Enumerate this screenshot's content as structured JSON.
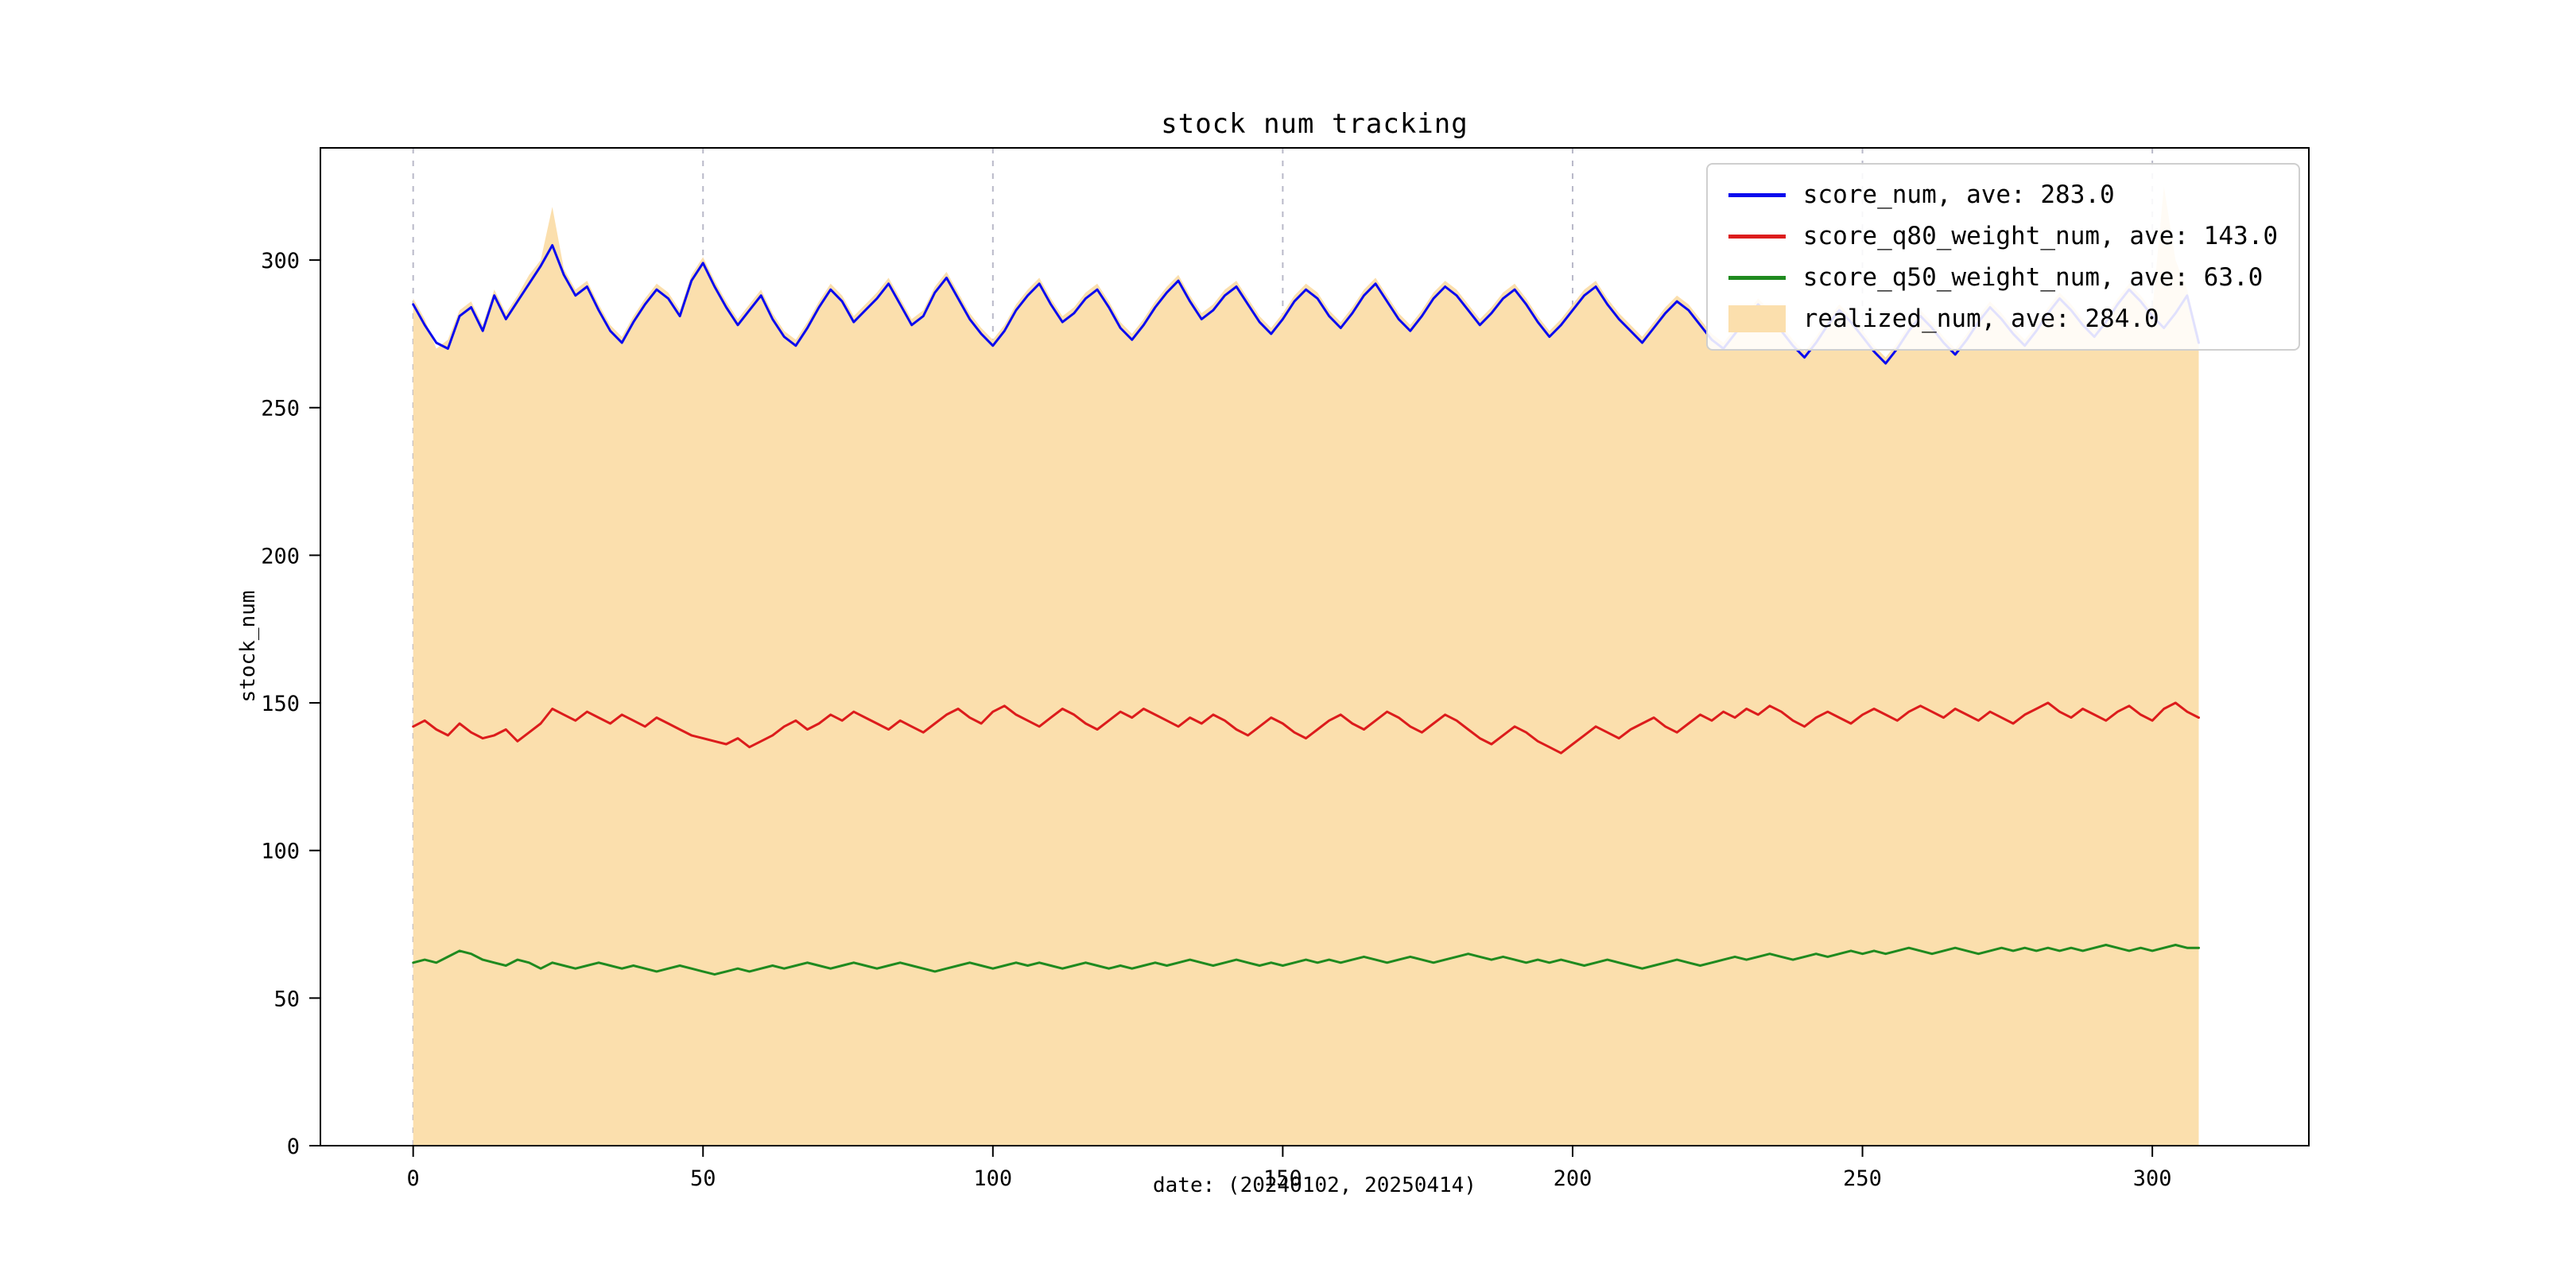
{
  "chart_data": {
    "type": "line",
    "title": "stock num tracking",
    "xlabel": "date: (20240102, 20250414)",
    "ylabel": "stock_num",
    "xlim": [
      -16,
      327
    ],
    "ylim": [
      0,
      338
    ],
    "xticks": [
      0,
      50,
      100,
      150,
      200,
      250,
      300
    ],
    "yticks": [
      0,
      50,
      100,
      150,
      200,
      250,
      300
    ],
    "grid": "vertical-dashed",
    "grid_color": "#b9b9c9",
    "legend_position": "upper right",
    "x": {
      "start": 0,
      "step": 2,
      "count": 155
    },
    "series": [
      {
        "name": "score_num",
        "label": "score_num, ave: 283.0",
        "type": "line",
        "color": "#0b0bee",
        "values": [
          285,
          278,
          272,
          270,
          281,
          284,
          276,
          288,
          280,
          286,
          292,
          298,
          305,
          295,
          288,
          291,
          283,
          276,
          272,
          279,
          285,
          290,
          287,
          281,
          293,
          299,
          291,
          284,
          278,
          283,
          288,
          280,
          274,
          271,
          277,
          284,
          290,
          286,
          279,
          283,
          287,
          292,
          285,
          278,
          281,
          289,
          294,
          287,
          280,
          275,
          271,
          276,
          283,
          288,
          292,
          285,
          279,
          282,
          287,
          290,
          284,
          277,
          273,
          278,
          284,
          289,
          293,
          286,
          280,
          283,
          288,
          291,
          285,
          279,
          275,
          280,
          286,
          290,
          287,
          281,
          277,
          282,
          288,
          292,
          286,
          280,
          276,
          281,
          287,
          291,
          288,
          283,
          278,
          282,
          287,
          290,
          285,
          279,
          274,
          278,
          283,
          288,
          291,
          285,
          280,
          276,
          272,
          277,
          282,
          286,
          283,
          278,
          273,
          270,
          275,
          280,
          285,
          281,
          276,
          271,
          267,
          272,
          278,
          283,
          279,
          274,
          269,
          265,
          270,
          276,
          281,
          277,
          272,
          268,
          273,
          279,
          284,
          280,
          275,
          271,
          276,
          282,
          287,
          283,
          278,
          274,
          279,
          285,
          290,
          286,
          281,
          277,
          282,
          288,
          272
        ]
      },
      {
        "name": "score_q80_weight_num",
        "label": "score_q80_weight_num, ave: 143.0",
        "type": "line",
        "color": "#dc1c1c",
        "values": [
          142,
          144,
          141,
          139,
          143,
          140,
          138,
          139,
          141,
          137,
          140,
          143,
          148,
          146,
          144,
          147,
          145,
          143,
          146,
          144,
          142,
          145,
          143,
          141,
          139,
          138,
          137,
          136,
          138,
          135,
          137,
          139,
          142,
          144,
          141,
          143,
          146,
          144,
          147,
          145,
          143,
          141,
          144,
          142,
          140,
          143,
          146,
          148,
          145,
          143,
          147,
          149,
          146,
          144,
          142,
          145,
          148,
          146,
          143,
          141,
          144,
          147,
          145,
          148,
          146,
          144,
          142,
          145,
          143,
          146,
          144,
          141,
          139,
          142,
          145,
          143,
          140,
          138,
          141,
          144,
          146,
          143,
          141,
          144,
          147,
          145,
          142,
          140,
          143,
          146,
          144,
          141,
          138,
          136,
          139,
          142,
          140,
          137,
          135,
          133,
          136,
          139,
          142,
          140,
          138,
          141,
          143,
          145,
          142,
          140,
          143,
          146,
          144,
          147,
          145,
          148,
          146,
          149,
          147,
          144,
          142,
          145,
          147,
          145,
          143,
          146,
          148,
          146,
          144,
          147,
          149,
          147,
          145,
          148,
          146,
          144,
          147,
          145,
          143,
          146,
          148,
          150,
          147,
          145,
          148,
          146,
          144,
          147,
          149,
          146,
          144,
          148,
          150,
          147,
          145
        ]
      },
      {
        "name": "score_q50_weight_num",
        "label": "score_q50_weight_num, ave: 63.0",
        "type": "line",
        "color": "#1f8a1f",
        "values": [
          62,
          63,
          62,
          64,
          66,
          65,
          63,
          62,
          61,
          63,
          62,
          60,
          62,
          61,
          60,
          61,
          62,
          61,
          60,
          61,
          60,
          59,
          60,
          61,
          60,
          59,
          58,
          59,
          60,
          59,
          60,
          61,
          60,
          61,
          62,
          61,
          60,
          61,
          62,
          61,
          60,
          61,
          62,
          61,
          60,
          59,
          60,
          61,
          62,
          61,
          60,
          61,
          62,
          61,
          62,
          61,
          60,
          61,
          62,
          61,
          60,
          61,
          60,
          61,
          62,
          61,
          62,
          63,
          62,
          61,
          62,
          63,
          62,
          61,
          62,
          61,
          62,
          63,
          62,
          63,
          62,
          63,
          64,
          63,
          62,
          63,
          64,
          63,
          62,
          63,
          64,
          65,
          64,
          63,
          64,
          63,
          62,
          63,
          62,
          63,
          62,
          61,
          62,
          63,
          62,
          61,
          60,
          61,
          62,
          63,
          62,
          61,
          62,
          63,
          64,
          63,
          64,
          65,
          64,
          63,
          64,
          65,
          64,
          65,
          66,
          65,
          66,
          65,
          66,
          67,
          66,
          65,
          66,
          67,
          66,
          65,
          66,
          67,
          66,
          67,
          66,
          67,
          66,
          67,
          66,
          67,
          68,
          67,
          66,
          67,
          66,
          67,
          68,
          67,
          67
        ]
      },
      {
        "name": "realized_num",
        "label": "realized_num, ave: 284.0",
        "type": "area",
        "color": "#fbdfad",
        "values": [
          287,
          280,
          270,
          273,
          283,
          286,
          278,
          290,
          282,
          288,
          295,
          300,
          318,
          297,
          290,
          293,
          285,
          278,
          274,
          281,
          287,
          292,
          289,
          283,
          295,
          301,
          293,
          286,
          280,
          285,
          290,
          282,
          276,
          273,
          279,
          286,
          292,
          288,
          281,
          285,
          289,
          294,
          287,
          280,
          283,
          291,
          296,
          289,
          282,
          277,
          273,
          278,
          285,
          290,
          294,
          287,
          281,
          284,
          289,
          292,
          286,
          279,
          275,
          280,
          286,
          291,
          295,
          288,
          282,
          285,
          290,
          293,
          287,
          281,
          277,
          282,
          288,
          292,
          289,
          283,
          279,
          284,
          290,
          294,
          288,
          282,
          278,
          283,
          289,
          293,
          290,
          285,
          280,
          284,
          289,
          292,
          287,
          281,
          276,
          280,
          285,
          290,
          293,
          287,
          282,
          278,
          274,
          279,
          284,
          288,
          285,
          280,
          275,
          272,
          277,
          282,
          287,
          283,
          278,
          273,
          269,
          274,
          280,
          285,
          281,
          276,
          271,
          267,
          272,
          278,
          283,
          279,
          274,
          270,
          275,
          281,
          286,
          282,
          277,
          273,
          278,
          284,
          289,
          285,
          280,
          276,
          281,
          287,
          292,
          288,
          283,
          325,
          300,
          290,
          274
        ]
      }
    ]
  }
}
